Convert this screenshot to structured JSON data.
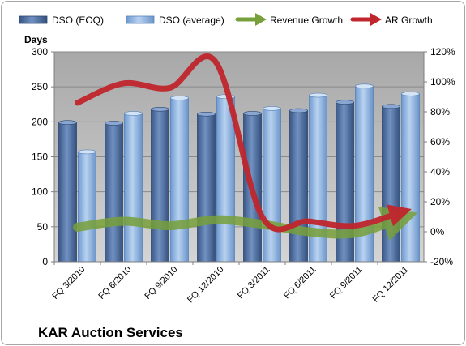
{
  "chart_data": {
    "type": "bar",
    "title": "KAR Auction Services",
    "ylabel": "Days",
    "categories": [
      "FQ 3/2010",
      "FQ 6/2010",
      "FQ 9/2010",
      "FQ 12/2010",
      "FQ 3/2011",
      "FQ 6/2011",
      "FQ 9/2011",
      "FQ 12/2011"
    ],
    "ylim": [
      0,
      300
    ],
    "yticks": [
      "0",
      "50",
      "100",
      "150",
      "200",
      "250",
      "300"
    ],
    "y2lim": [
      -0.2,
      1.2
    ],
    "y2ticks": [
      "-20%",
      "0%",
      "20%",
      "40%",
      "60%",
      "80%",
      "100%",
      "120%"
    ],
    "bar_series": [
      {
        "name": "DSO (EOQ)",
        "values": [
          199,
          198,
          218,
          211,
          212,
          216,
          228,
          222
        ],
        "color": "#4f6fa0"
      },
      {
        "name": "DSO (average)",
        "values": [
          157,
          212,
          234,
          236,
          219,
          238,
          251,
          240
        ],
        "color": "#8fb4df"
      }
    ],
    "line_series": [
      {
        "name": "Revenue Growth",
        "axis": "secondary",
        "values": [
          0.03,
          0.07,
          0.04,
          0.08,
          0.05,
          0.0,
          -0.01,
          0.09
        ],
        "color": "#77a03a"
      },
      {
        "name": "AR Growth",
        "axis": "secondary",
        "values": [
          0.86,
          0.99,
          0.96,
          1.13,
          0.1,
          0.07,
          0.04,
          0.13
        ],
        "color": "#c0262d"
      }
    ],
    "plot_background": "#c0c0c0",
    "legend_position": "top",
    "grid": true
  }
}
